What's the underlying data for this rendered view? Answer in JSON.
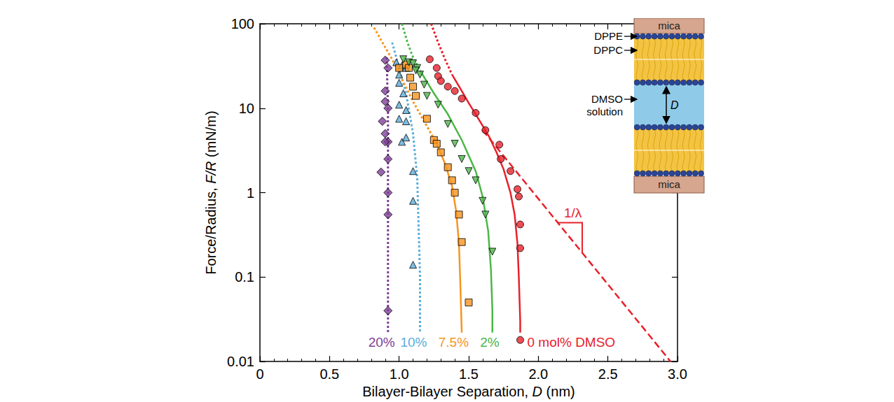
{
  "chart_data": {
    "type": "scatter",
    "x_label": "Bilayer-Bilayer Separation, D (nm)",
    "y_label": "Force/Radius, F/R (mN/m)",
    "xlim": [
      0,
      3
    ],
    "xticks": [
      0,
      0.5,
      {
        "value": 1,
        "label": "1.0"
      },
      1.5,
      {
        "value": 2,
        "label": "2.0"
      },
      2.5,
      {
        "value": 3,
        "label": "3.0"
      }
    ],
    "ylim": [
      0.01,
      100
    ],
    "yticks": [
      0.01,
      0.1,
      1,
      10,
      100
    ],
    "log": "y",
    "grid": false,
    "series": [
      {
        "name": "20%",
        "color": "#7f3f98",
        "marker": "diamond",
        "values": [
          [
            0.9,
            37
          ],
          [
            0.92,
            30
          ],
          [
            0.9,
            16
          ],
          [
            0.9,
            12
          ],
          [
            0.92,
            10
          ],
          [
            0.88,
            7
          ],
          [
            0.9,
            5
          ],
          [
            0.92,
            4
          ],
          [
            0.9,
            4
          ],
          [
            0.92,
            2.5
          ],
          [
            0.87,
            1.75
          ],
          [
            0.92,
            1.0
          ],
          [
            0.92,
            0.55
          ],
          [
            0.92,
            0.04
          ]
        ],
        "fit": [
          {
            "type": "line",
            "line_style": "dotted",
            "values": [
              [
                0.91,
                40
              ],
              [
                0.92,
                10
              ],
              [
                0.92,
                0.022
              ]
            ]
          }
        ]
      },
      {
        "name": "10%",
        "color": "#5aaedc",
        "marker": "triangle",
        "values": [
          [
            0.98,
            35
          ],
          [
            1.02,
            32
          ],
          [
            1.05,
            30
          ],
          [
            1.0,
            25
          ],
          [
            1.0,
            20
          ],
          [
            1.03,
            15
          ],
          [
            1.0,
            11
          ],
          [
            1.05,
            9.5
          ],
          [
            1.0,
            7.5
          ],
          [
            1.05,
            7
          ],
          [
            1.02,
            4
          ],
          [
            1.05,
            4.5
          ],
          [
            1.1,
            1.8
          ],
          [
            1.1,
            0.8
          ],
          [
            1.1,
            0.14
          ]
        ],
        "fit": [
          {
            "type": "line",
            "line_style": "dotted",
            "values": [
              [
                0.95,
                60
              ],
              [
                1.0,
                30
              ],
              [
                1.05,
                15
              ],
              [
                1.1,
                5
              ],
              [
                1.13,
                1.5
              ],
              [
                1.14,
                0.4
              ],
              [
                1.15,
                0.1
              ],
              [
                1.15,
                0.022
              ]
            ]
          }
        ]
      },
      {
        "name": "7.5%",
        "color": "#f7941e",
        "marker": "square",
        "values": [
          [
            1.0,
            30
          ],
          [
            1.05,
            33
          ],
          [
            1.07,
            30
          ],
          [
            1.08,
            23
          ],
          [
            1.1,
            18
          ],
          [
            1.12,
            14
          ],
          [
            1.2,
            7.5
          ],
          [
            1.25,
            4.2
          ],
          [
            1.27,
            3.8
          ],
          [
            1.3,
            3.0
          ],
          [
            1.35,
            2.0
          ],
          [
            1.38,
            1.4
          ],
          [
            1.4,
            1.0
          ],
          [
            1.43,
            0.55
          ],
          [
            1.45,
            0.26
          ],
          [
            1.5,
            0.05
          ]
        ],
        "fit": [
          {
            "type": "line",
            "line_style": "dotted",
            "values": [
              [
                0.82,
                90
              ],
              [
                0.88,
                60
              ],
              [
                0.95,
                38
              ],
              [
                1.02,
                22
              ],
              [
                1.1,
                12
              ],
              [
                1.18,
                7
              ],
              [
                1.27,
                3.8
              ]
            ]
          },
          {
            "type": "line",
            "line_style": "solid",
            "values": [
              [
                1.27,
                3.8
              ],
              [
                1.33,
                2.2
              ],
              [
                1.38,
                1.2
              ],
              [
                1.41,
                0.6
              ],
              [
                1.43,
                0.25
              ],
              [
                1.44,
                0.08
              ],
              [
                1.45,
                0.022
              ]
            ]
          }
        ]
      },
      {
        "name": "2%",
        "color": "#4cb748",
        "marker": "triangle-down",
        "values": [
          [
            1.03,
            38
          ],
          [
            1.07,
            35
          ],
          [
            1.1,
            34
          ],
          [
            1.13,
            30
          ],
          [
            1.12,
            28
          ],
          [
            1.15,
            25
          ],
          [
            1.18,
            19
          ],
          [
            1.2,
            14
          ],
          [
            1.28,
            11
          ],
          [
            1.35,
            6.5
          ],
          [
            1.4,
            3.8
          ],
          [
            1.45,
            2.5
          ],
          [
            1.5,
            1.8
          ],
          [
            1.55,
            1.4
          ],
          [
            1.6,
            0.8
          ],
          [
            1.62,
            0.55
          ],
          [
            1.67,
            0.2
          ]
        ],
        "fit": [
          {
            "type": "line",
            "line_style": "dotted",
            "values": [
              [
                1.02,
                100
              ],
              [
                1.06,
                60
              ],
              [
                1.1,
                40
              ],
              [
                1.15,
                28
              ]
            ]
          },
          {
            "type": "line",
            "line_style": "solid",
            "values": [
              [
                1.15,
                28
              ],
              [
                1.25,
                15
              ],
              [
                1.35,
                8.5
              ],
              [
                1.45,
                4.2
              ],
              [
                1.55,
                1.8
              ],
              [
                1.6,
                0.9
              ],
              [
                1.64,
                0.35
              ],
              [
                1.66,
                0.12
              ],
              [
                1.67,
                0.04
              ],
              [
                1.67,
                0.022
              ]
            ]
          }
        ]
      },
      {
        "name": "0 mol% DMSO",
        "color": "#e8202a",
        "marker": "circle",
        "values": [
          [
            1.22,
            38
          ],
          [
            1.27,
            30
          ],
          [
            1.28,
            24
          ],
          [
            1.3,
            21
          ],
          [
            1.35,
            18
          ],
          [
            1.4,
            16
          ],
          [
            1.45,
            13
          ],
          [
            1.55,
            8.8
          ],
          [
            1.62,
            5.5
          ],
          [
            1.72,
            3.7
          ],
          [
            1.73,
            2.5
          ],
          [
            1.8,
            1.8
          ],
          [
            1.85,
            1.1
          ],
          [
            1.86,
            0.9
          ],
          [
            1.87,
            0.42
          ],
          [
            1.87,
            0.22
          ],
          [
            1.87,
            0.018
          ]
        ],
        "fit": [
          {
            "type": "line",
            "line_style": "dotted",
            "values": [
              [
                1.23,
                100
              ],
              [
                1.28,
                60
              ],
              [
                1.33,
                38
              ],
              [
                1.38,
                25
              ]
            ]
          },
          {
            "type": "line",
            "line_style": "solid",
            "values": [
              [
                1.38,
                25
              ],
              [
                1.45,
                16
              ],
              [
                1.5,
                11.5
              ],
              [
                1.55,
                8.5
              ],
              [
                1.6,
                6.2
              ],
              [
                1.65,
                4.5
              ],
              [
                1.7,
                3
              ],
              [
                1.75,
                1.9
              ],
              [
                1.8,
                1
              ],
              [
                1.83,
                0.55
              ],
              [
                1.85,
                0.25
              ],
              [
                1.86,
                0.1
              ],
              [
                1.87,
                0.03
              ],
              [
                1.87,
                0.022
              ]
            ]
          },
          {
            "type": "line",
            "line_style": "dashed",
            "values": [
              [
                1.6,
                5.5
              ],
              [
                2.95,
                0.01
              ]
            ]
          }
        ]
      }
    ],
    "annotations": [
      {
        "text": "1/λ",
        "color": "#e8202a"
      }
    ]
  },
  "inset": {
    "top": "mica",
    "bottom": "mica",
    "labels": [
      "DPPE",
      "DPPC",
      "DMSO solution"
    ],
    "gap": "D"
  }
}
